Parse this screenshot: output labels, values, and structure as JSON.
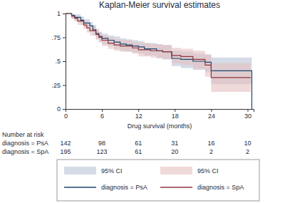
{
  "chart_data": {
    "type": "kaplan_meier",
    "title": "Kaplan-Meier survival estimates",
    "x_label": "Drug survival (months)",
    "xlim": [
      0,
      31
    ],
    "xticks": [
      0,
      6,
      12,
      18,
      24,
      30
    ],
    "ylim": [
      0,
      1
    ],
    "yticks": [
      0,
      {
        "value": 0.25,
        "label": ".25"
      },
      {
        "value": 0.5,
        "label": ".5"
      },
      {
        "value": 0.75,
        "label": ".75"
      },
      1
    ],
    "grid": false,
    "legend": "bottom",
    "series": [
      {
        "name": "diagnosis = PsA",
        "color": "#1a476f",
        "ci_label": "95% CI",
        "ci_color": "#b9c3d6",
        "x": [
          0,
          1,
          1.5,
          2.5,
          3,
          4,
          4.5,
          5,
          5.5,
          6,
          7,
          8,
          9,
          10,
          11,
          12,
          13,
          15,
          16,
          17.5,
          19,
          21,
          23,
          24,
          30.7
        ],
        "values": [
          1,
          0.98,
          0.96,
          0.93,
          0.9,
          0.87,
          0.83,
          0.79,
          0.76,
          0.74,
          0.72,
          0.7,
          0.68,
          0.67,
          0.66,
          0.65,
          0.63,
          0.61,
          0.6,
          0.53,
          0.52,
          0.5,
          0.49,
          0.4,
          0
        ],
        "ci_lower": [
          1,
          0.95,
          0.92,
          0.88,
          0.85,
          0.82,
          0.77,
          0.73,
          0.7,
          0.68,
          0.66,
          0.63,
          0.61,
          0.6,
          0.59,
          0.58,
          0.56,
          0.53,
          0.52,
          0.45,
          0.43,
          0.41,
          0.39,
          0.26,
          0
        ],
        "ci_upper": [
          1,
          1,
          0.99,
          0.97,
          0.94,
          0.91,
          0.88,
          0.84,
          0.81,
          0.79,
          0.77,
          0.76,
          0.74,
          0.73,
          0.72,
          0.71,
          0.69,
          0.68,
          0.67,
          0.61,
          0.6,
          0.58,
          0.57,
          0.54,
          0
        ]
      },
      {
        "name": "diagnosis = SpA",
        "color": "#90353b",
        "ci_label": "95% CI",
        "ci_color": "#e6bfbf",
        "x": [
          0,
          1,
          1.5,
          2,
          3,
          3.5,
          4,
          5,
          5.5,
          6,
          7,
          8,
          9,
          11,
          12,
          14,
          16,
          17.5,
          19,
          21,
          23,
          24,
          30.5
        ],
        "values": [
          1,
          0.97,
          0.95,
          0.92,
          0.88,
          0.85,
          0.82,
          0.78,
          0.75,
          0.72,
          0.69,
          0.67,
          0.66,
          0.64,
          0.62,
          0.61,
          0.6,
          0.56,
          0.55,
          0.52,
          0.46,
          0.33,
          0.33
        ],
        "ci_lower": [
          1,
          0.94,
          0.92,
          0.88,
          0.84,
          0.8,
          0.77,
          0.73,
          0.7,
          0.66,
          0.63,
          0.61,
          0.6,
          0.58,
          0.55,
          0.54,
          0.52,
          0.48,
          0.46,
          0.42,
          0.34,
          0.18,
          0.18
        ],
        "ci_upper": [
          1,
          0.99,
          0.98,
          0.95,
          0.92,
          0.89,
          0.87,
          0.83,
          0.8,
          0.77,
          0.75,
          0.73,
          0.72,
          0.7,
          0.69,
          0.68,
          0.67,
          0.64,
          0.63,
          0.61,
          0.57,
          0.48,
          0.48
        ]
      }
    ],
    "risk_table": {
      "title": "Number at risk",
      "rows": [
        {
          "label": "diagnosis = PsA",
          "values": [
            142,
            98,
            61,
            31,
            16,
            10
          ]
        },
        {
          "label": "diagnosis = SpA",
          "values": [
            195,
            123,
            61,
            20,
            2,
            2
          ]
        }
      ]
    }
  }
}
